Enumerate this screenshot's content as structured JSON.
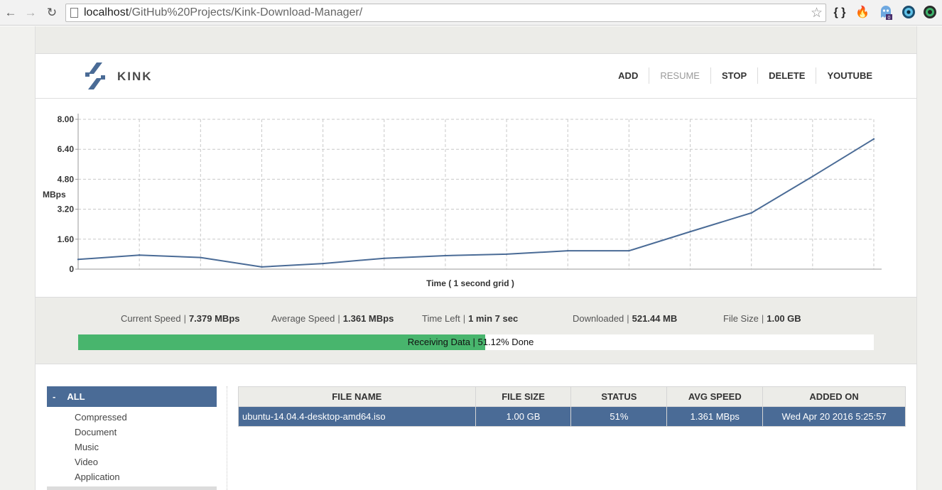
{
  "browser": {
    "url_host": "localhost",
    "url_path": "/GitHub%20Projects/Kink-Download-Manager/",
    "extensions": [
      "braces-icon",
      "fire-icon",
      "ghost-icon",
      "eye-icon",
      "chrome-icon"
    ],
    "ghost_badge": "0"
  },
  "app": {
    "logo_text": "KINK",
    "menu": [
      "ADD",
      "RESUME",
      "STOP",
      "DELETE",
      "YOUTUBE"
    ],
    "menu_disabled": [
      "RESUME"
    ]
  },
  "chart_data": {
    "type": "line",
    "ylabel": "MBps",
    "xlabel": "Time ( 1 second grid )",
    "yticks": [
      "8.00",
      "6.40",
      "4.80",
      "3.20",
      "1.60",
      "0"
    ],
    "ylim": [
      0,
      8
    ],
    "x_count": 14,
    "values": [
      0.52,
      0.75,
      0.62,
      0.12,
      0.3,
      0.58,
      0.72,
      0.8,
      0.98,
      0.98,
      2.0,
      3.0,
      4.95,
      6.95
    ],
    "grid": true,
    "line_color": "#4a6b96"
  },
  "stats": {
    "current_speed_label": "Current Speed",
    "current_speed": "7.379 MBps",
    "average_speed_label": "Average Speed",
    "average_speed": "1.361 MBps",
    "time_left_label": "Time Left",
    "time_left": "1 min 7 sec",
    "downloaded_label": "Downloaded",
    "downloaded": "521.44 MB",
    "file_size_label": "File Size",
    "file_size": "1.00 GB",
    "separator": "|"
  },
  "progress": {
    "percent": 51.12,
    "status": "Receiving Data",
    "done": "51.12% Done",
    "color": "#48b56d"
  },
  "sidebar": {
    "all_label": "ALL",
    "collapse": "-",
    "categories": [
      "Compressed",
      "Document",
      "Music",
      "Video",
      "Application"
    ]
  },
  "table": {
    "headers": [
      "FILE NAME",
      "FILE SIZE",
      "STATUS",
      "AVG SPEED",
      "ADDED ON"
    ],
    "rows": [
      [
        "ubuntu-14.04.4-desktop-amd64.iso",
        "1.00 GB",
        "51%",
        "1.361 MBps",
        "Wed Apr 20 2016 5:25:57"
      ]
    ]
  }
}
